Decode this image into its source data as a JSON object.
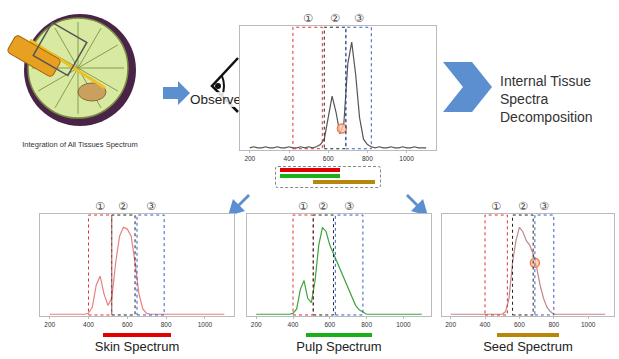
{
  "caption": "Integration of All Tissues Spectrum",
  "observed_label": "Observed",
  "decomposition_label": "Internal Tissue Spectra Decomposition",
  "chart_data": [
    {
      "type": "line",
      "tick_labels": "x",
      "grid": false,
      "x": [
        200,
        220,
        240,
        260,
        280,
        300,
        320,
        340,
        360,
        380,
        400,
        420,
        440,
        460,
        480,
        500,
        520,
        540,
        560,
        580,
        600,
        620,
        640,
        660,
        680,
        700,
        720,
        740,
        760,
        780,
        800,
        820,
        840,
        860,
        880,
        900,
        920,
        940,
        960,
        980,
        1000,
        1020,
        1040,
        1060,
        1080,
        1100
      ],
      "series": [
        {
          "color": "#555555",
          "values": [
            0.02,
            0.03,
            0.02,
            0.02,
            0.03,
            0.02,
            0.02,
            0.03,
            0.02,
            0.02,
            0.03,
            0.02,
            0.02,
            0.03,
            0.02,
            0.03,
            0.02,
            0.03,
            0.05,
            0.1,
            0.3,
            0.5,
            0.35,
            0.15,
            0.25,
            0.8,
            1.0,
            0.7,
            0.3,
            0.1,
            0.05,
            0.03,
            0.02,
            0.03,
            0.02,
            0.02,
            0.03,
            0.02,
            0.02,
            0.03,
            0.02,
            0.02,
            0.03,
            0.02,
            0.02,
            0.02
          ]
        }
      ],
      "highlight": {
        "x": 670,
        "y": 0.2,
        "marker": "circle",
        "color": "#f08050"
      },
      "regions": [
        {
          "label": "①",
          "range": [
            420,
            570
          ],
          "color": "#e03030"
        },
        {
          "label": "②",
          "range": [
            580,
            690
          ],
          "color": "#222222"
        },
        {
          "label": "③",
          "range": [
            690,
            820
          ],
          "color": "#3060c0"
        }
      ],
      "xlim": [
        150,
        1150
      ],
      "xticks": [
        200,
        400,
        600,
        800,
        1000
      ],
      "ylim": [
        0,
        1.15
      ]
    },
    {
      "type": "line",
      "title": "Skin  Spectrum",
      "color": "#e00000",
      "tick_labels": "x",
      "grid": false,
      "x": [
        200,
        220,
        240,
        260,
        280,
        300,
        320,
        340,
        360,
        380,
        400,
        420,
        440,
        460,
        480,
        500,
        520,
        540,
        560,
        580,
        600,
        620,
        640,
        660,
        680,
        700,
        720,
        740,
        760,
        780,
        800,
        820,
        840,
        860,
        880,
        900,
        920,
        940,
        960,
        980,
        1000,
        1020,
        1040,
        1060,
        1080,
        1100
      ],
      "series": [
        {
          "color": "#e88080",
          "values": [
            0.02,
            0.02,
            0.02,
            0.02,
            0.02,
            0.02,
            0.02,
            0.02,
            0.02,
            0.02,
            0.03,
            0.1,
            0.35,
            0.45,
            0.25,
            0.12,
            0.2,
            0.6,
            0.9,
            1.0,
            0.98,
            0.9,
            0.6,
            0.25,
            0.08,
            0.03,
            0.02,
            0.02,
            0.02,
            0.02,
            0.02,
            0.02,
            0.02,
            0.02,
            0.02,
            0.02,
            0.02,
            0.02,
            0.02,
            0.02,
            0.02,
            0.02,
            0.02,
            0.02,
            0.02,
            0.02
          ]
        }
      ],
      "regions": [
        {
          "label": "①",
          "range": [
            400,
            520
          ],
          "color": "#e03030"
        },
        {
          "label": "②",
          "range": [
            520,
            640
          ],
          "color": "#222222"
        },
        {
          "label": "③",
          "range": [
            650,
            790
          ],
          "color": "#3060c0"
        }
      ],
      "xlim": [
        150,
        1150
      ],
      "xticks": [
        200,
        400,
        600,
        800,
        1000
      ],
      "ylim": [
        0,
        1.15
      ]
    },
    {
      "type": "line",
      "title": "Pulp Spectrum",
      "color": "#1ab01a",
      "tick_labels": "x",
      "grid": false,
      "x": [
        200,
        220,
        240,
        260,
        280,
        300,
        320,
        340,
        360,
        380,
        400,
        420,
        440,
        460,
        480,
        500,
        520,
        540,
        560,
        580,
        600,
        620,
        640,
        660,
        680,
        700,
        720,
        740,
        760,
        780,
        800,
        820,
        840,
        860,
        880,
        900,
        920,
        940,
        960,
        980,
        1000,
        1020,
        1040,
        1060,
        1080,
        1100
      ],
      "series": [
        {
          "color": "#3aa53a",
          "values": [
            0.02,
            0.02,
            0.02,
            0.02,
            0.02,
            0.02,
            0.02,
            0.02,
            0.02,
            0.02,
            0.03,
            0.08,
            0.3,
            0.4,
            0.2,
            0.15,
            0.4,
            0.8,
            1.0,
            0.95,
            0.8,
            0.7,
            0.6,
            0.5,
            0.4,
            0.3,
            0.2,
            0.12,
            0.07,
            0.04,
            0.02,
            0.02,
            0.02,
            0.02,
            0.02,
            0.02,
            0.02,
            0.02,
            0.02,
            0.02,
            0.02,
            0.02,
            0.02,
            0.02,
            0.02,
            0.02
          ]
        }
      ],
      "regions": [
        {
          "label": "①",
          "range": [
            400,
            510
          ],
          "color": "#e03030"
        },
        {
          "label": "②",
          "range": [
            510,
            620
          ],
          "color": "#222222"
        },
        {
          "label": "③",
          "range": [
            630,
            780
          ],
          "color": "#3060c0"
        }
      ],
      "xlim": [
        150,
        1150
      ],
      "xticks": [
        200,
        400,
        600,
        800,
        1000
      ],
      "ylim": [
        0,
        1.15
      ]
    },
    {
      "type": "line",
      "title": "Seed Spectrum",
      "color": "#b8860b",
      "tick_labels": "x",
      "grid": false,
      "x": [
        200,
        220,
        240,
        260,
        280,
        300,
        320,
        340,
        360,
        380,
        400,
        420,
        440,
        460,
        480,
        500,
        520,
        540,
        560,
        580,
        600,
        620,
        640,
        660,
        680,
        700,
        720,
        740,
        760,
        780,
        800,
        820,
        840,
        860,
        880,
        900,
        920,
        940,
        960,
        980,
        1000,
        1020,
        1040,
        1060,
        1080,
        1100
      ],
      "series": [
        {
          "color": "#c08888",
          "values": [
            0.02,
            0.02,
            0.02,
            0.02,
            0.02,
            0.02,
            0.02,
            0.02,
            0.02,
            0.02,
            0.02,
            0.02,
            0.02,
            0.02,
            0.02,
            0.02,
            0.05,
            0.2,
            0.6,
            0.85,
            1.0,
            0.95,
            0.85,
            0.8,
            0.7,
            0.55,
            0.35,
            0.2,
            0.1,
            0.05,
            0.02,
            0.02,
            0.02,
            0.02,
            0.02,
            0.02,
            0.02,
            0.02,
            0.02,
            0.02,
            0.02,
            0.02,
            0.02,
            0.02,
            0.02,
            0.02
          ]
        }
      ],
      "highlight": {
        "x": 690,
        "y": 0.6,
        "marker": "circle",
        "color": "#f08050"
      },
      "regions": [
        {
          "label": "①",
          "range": [
            400,
            530
          ],
          "color": "#e03030"
        },
        {
          "label": "②",
          "range": [
            560,
            680
          ],
          "color": "#222222"
        },
        {
          "label": "③",
          "range": [
            690,
            800
          ],
          "color": "#3060c0"
        }
      ],
      "xlim": [
        150,
        1150
      ],
      "xticks": [
        200,
        400,
        600,
        800,
        1000
      ],
      "ylim": [
        0,
        1.15
      ]
    }
  ]
}
